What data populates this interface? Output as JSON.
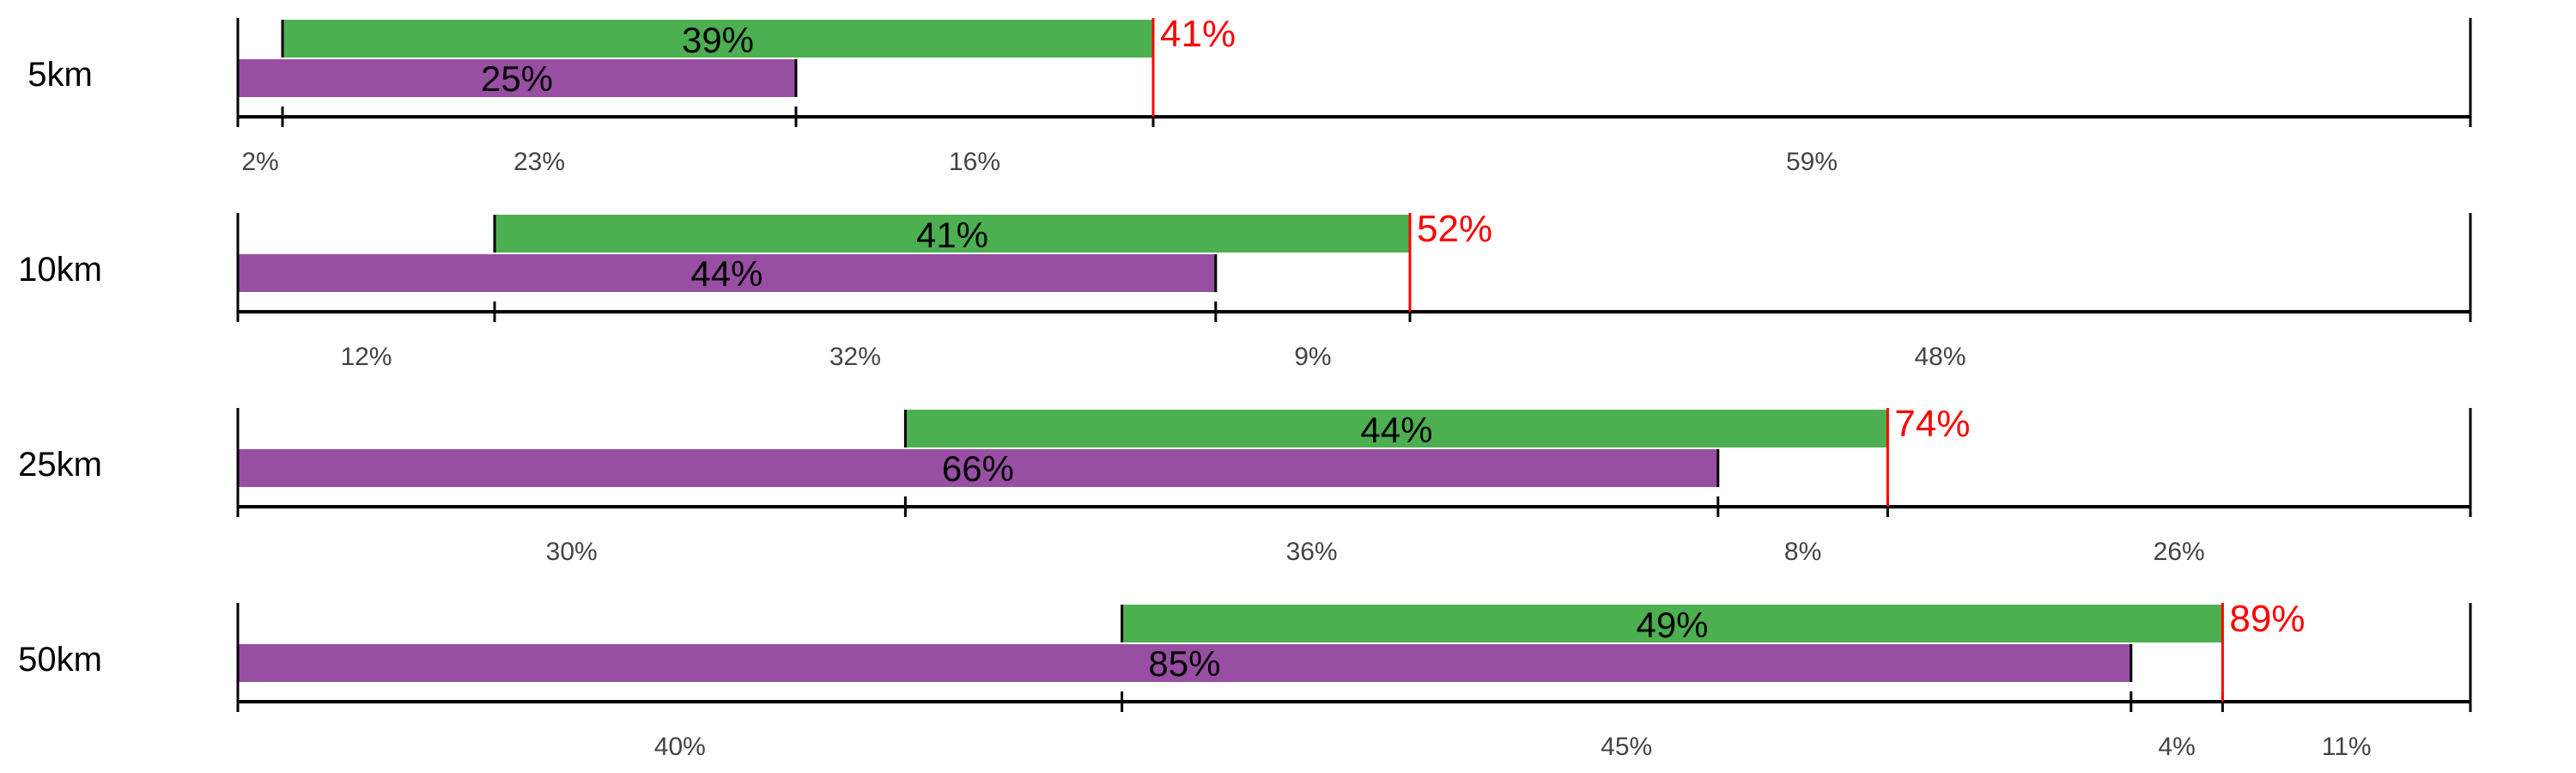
{
  "chart_data": {
    "type": "bar",
    "colors": {
      "green": "#4caf50",
      "purple": "#984ea3",
      "total_marker": "#ff0000",
      "axis": "#000000"
    },
    "rows": [
      {
        "label": "5km",
        "green": {
          "start": 2,
          "end": 41,
          "label": "39%"
        },
        "purple": {
          "start": 0,
          "end": 25,
          "label": "25%"
        },
        "total": {
          "value": 41,
          "label": "41%"
        },
        "segments": [
          {
            "start": 0,
            "end": 2,
            "label": "2%"
          },
          {
            "start": 2,
            "end": 25,
            "label": "23%"
          },
          {
            "start": 25,
            "end": 41,
            "label": "16%"
          },
          {
            "start": 41,
            "end": 100,
            "label": "59%"
          }
        ]
      },
      {
        "label": "10km",
        "green": {
          "start": 11.5,
          "end": 52.5,
          "label": "41%"
        },
        "purple": {
          "start": 0,
          "end": 43.8,
          "label": "44%"
        },
        "total": {
          "value": 52.5,
          "label": "52%"
        },
        "segments": [
          {
            "start": 0,
            "end": 11.5,
            "label": "12%"
          },
          {
            "start": 11.5,
            "end": 43.8,
            "label": "32%"
          },
          {
            "start": 43.8,
            "end": 52.5,
            "label": "9%"
          },
          {
            "start": 52.5,
            "end": 100,
            "label": "48%"
          }
        ]
      },
      {
        "label": "25km",
        "green": {
          "start": 29.9,
          "end": 73.9,
          "label": "44%"
        },
        "purple": {
          "start": 0,
          "end": 66.3,
          "label": "66%"
        },
        "total": {
          "value": 73.9,
          "label": "74%"
        },
        "segments": [
          {
            "start": 0,
            "end": 29.9,
            "label": "30%"
          },
          {
            "start": 29.9,
            "end": 66.3,
            "label": "36%"
          },
          {
            "start": 66.3,
            "end": 73.9,
            "label": "8%"
          },
          {
            "start": 73.9,
            "end": 100,
            "label": "26%"
          }
        ]
      },
      {
        "label": "50km",
        "green": {
          "start": 39.6,
          "end": 88.9,
          "label": "49%"
        },
        "purple": {
          "start": 0,
          "end": 84.8,
          "label": "85%"
        },
        "total": {
          "value": 88.9,
          "label": "89%"
        },
        "segments": [
          {
            "start": 0,
            "end": 39.6,
            "label": "40%"
          },
          {
            "start": 39.6,
            "end": 84.8,
            "label": "45%"
          },
          {
            "start": 84.8,
            "end": 88.9,
            "label": "4%"
          },
          {
            "start": 88.9,
            "end": 100,
            "label": "11%"
          }
        ]
      }
    ]
  }
}
